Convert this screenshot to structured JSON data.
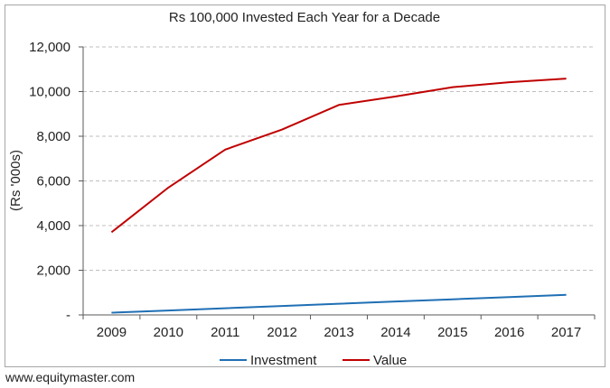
{
  "chart_data": {
    "type": "line",
    "title": "Rs 100,000 Invested Each Year for a Decade",
    "xlabel": "",
    "ylabel": "(Rs '000s)",
    "categories": [
      "2009",
      "2010",
      "2011",
      "2012",
      "2013",
      "2014",
      "2015",
      "2016",
      "2017"
    ],
    "series": [
      {
        "name": "Investment",
        "color": "#1f6fb4",
        "values": [
          100,
          200,
          300,
          400,
          500,
          600,
          700,
          800,
          900
        ]
      },
      {
        "name": "Value",
        "color": "#c00000",
        "values": [
          3700,
          5700,
          7400,
          8300,
          9400,
          9780,
          10200,
          10420,
          10580
        ]
      }
    ],
    "ylim": [
      0,
      12000
    ],
    "yticks": [
      {
        "value": 0,
        "label": "-"
      },
      {
        "value": 2000,
        "label": "2,000"
      },
      {
        "value": 4000,
        "label": "4,000"
      },
      {
        "value": 6000,
        "label": "6,000"
      },
      {
        "value": 8000,
        "label": "8,000"
      },
      {
        "value": 10000,
        "label": "10,000"
      },
      {
        "value": 12000,
        "label": "12,000"
      }
    ],
    "grid": "horizontal dashed",
    "legend": "bottom-center"
  },
  "footer": {
    "text": "www.equitymaster.com"
  }
}
